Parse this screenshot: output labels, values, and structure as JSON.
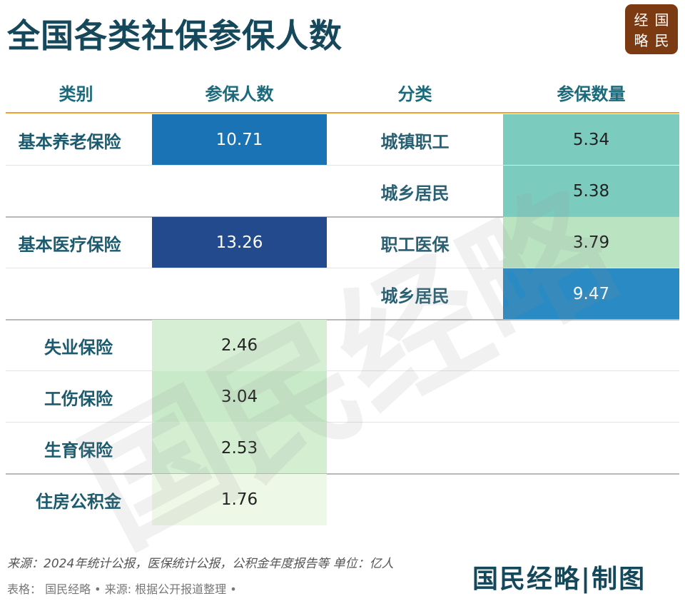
{
  "title": "全国各类社保参保人数",
  "logo": [
    "经",
    "国",
    "略",
    "民"
  ],
  "watermark": "国民经略",
  "chart_data": {
    "type": "table",
    "columns": [
      "类别",
      "参保人数",
      "分类",
      "参保数量"
    ],
    "rows": [
      {
        "category": "基本养老保险",
        "value": "10.71",
        "color": "#1a73b5",
        "subs": [
          {
            "name": "城镇职工",
            "value": "5.34",
            "color": "#7ccbbf"
          },
          {
            "name": "城乡居民",
            "value": "5.38",
            "color": "#7ccbbf"
          }
        ]
      },
      {
        "category": "基本医疗保险",
        "value": "13.26",
        "color": "#234a8c",
        "subs": [
          {
            "name": "职工医保",
            "value": "3.79",
            "color": "#b9e3c1"
          },
          {
            "name": "城乡居民",
            "value": "9.47",
            "color": "#2a8ac3"
          }
        ]
      },
      {
        "category": "失业保险",
        "value": "2.46",
        "color": "#d6efd4"
      },
      {
        "category": "工伤保险",
        "value": "3.04",
        "color": "#c9eac9"
      },
      {
        "category": "生育保险",
        "value": "2.53",
        "color": "#d3eed1"
      },
      {
        "category": "住房公积金",
        "value": "1.76",
        "color": "#eef8e6"
      }
    ],
    "unit": "亿人"
  },
  "footer": {
    "source": "来源：2024年统计公报，医保统计公报，公积金年度报告等 单位：亿人",
    "credit": "表格： 国民经略 • 来源: 根据公开报道整理 •",
    "brand": "国民经略|制图"
  }
}
